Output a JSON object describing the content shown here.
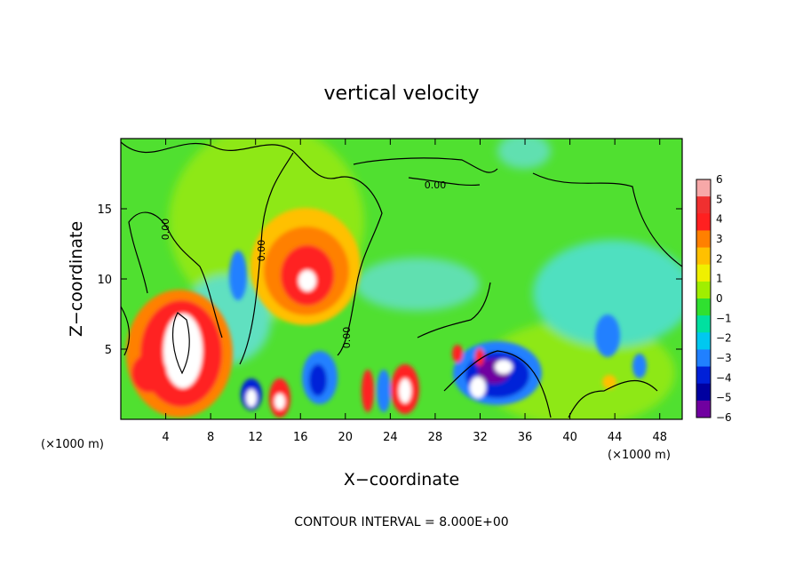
{
  "chart_data": {
    "type": "heatmap",
    "title": "vertical velocity",
    "xlabel": "X−coordinate",
    "ylabel": "Z−coordinate",
    "x_unit_left": "(×1000 m)",
    "x_unit_right": "(×1000 m)",
    "footer": "CONTOUR INTERVAL = 8.000E+00",
    "xlim": [
      0,
      50
    ],
    "ylim": [
      0,
      20
    ],
    "x_ticks": [
      4,
      8,
      12,
      16,
      20,
      24,
      28,
      32,
      36,
      40,
      44,
      48
    ],
    "x_tick_labels": [
      "4",
      "8",
      "12",
      "16",
      "20",
      "24",
      "28",
      "32",
      "36",
      "40",
      "44",
      "48"
    ],
    "y_ticks": [
      5,
      10,
      15
    ],
    "y_tick_labels": [
      "5",
      "10",
      "15"
    ],
    "colorbar": {
      "levels": [
        6,
        5,
        4,
        3,
        2,
        1,
        0,
        -1,
        -2,
        -3,
        -4,
        -5,
        -6
      ],
      "labels": [
        "6",
        "5",
        "4",
        "3",
        "2",
        "1",
        "0",
        "−1",
        "−2",
        "−3",
        "−4",
        "−5",
        "−6"
      ],
      "colors": [
        "#f7a8a8",
        "#f03030",
        "#ff2020",
        "#ff8000",
        "#ffc000",
        "#f0f000",
        "#a0ee00",
        "#30e030",
        "#00e0a0",
        "#00c8f0",
        "#2080ff",
        "#0020d8",
        "#0000a0",
        "#7000a0"
      ]
    },
    "contour_labels": [
      "0.00",
      "0.00",
      "0.00",
      "0.00"
    ],
    "features": [
      {
        "name": "updraft core",
        "x": 5.5,
        "z": 6.0,
        "w": 8
      },
      {
        "name": "upper updraft",
        "x": 16.5,
        "z": 10.0,
        "w": 7
      },
      {
        "name": "updraft",
        "x": 25.5,
        "z": 2.2,
        "w": 6
      },
      {
        "name": "updraft",
        "x": 11.5,
        "z": 1.6,
        "w": 6
      },
      {
        "name": "updraft",
        "x": 14.0,
        "z": 1.4,
        "w": 5
      },
      {
        "name": "downdraft",
        "x": 33.5,
        "z": 3.0,
        "w": -6
      },
      {
        "name": "updraft",
        "x": 34.0,
        "z": 3.8,
        "w": 6
      },
      {
        "name": "updraft",
        "x": 31.5,
        "z": 2.2,
        "w": 6
      },
      {
        "name": "downdraft",
        "x": 18.5,
        "z": 3.0,
        "w": -4
      },
      {
        "name": "downdraft",
        "x": 10.5,
        "z": 10.5,
        "w": -3
      },
      {
        "name": "downdraft",
        "x": 43.0,
        "z": 6.0,
        "w": -3
      }
    ]
  }
}
